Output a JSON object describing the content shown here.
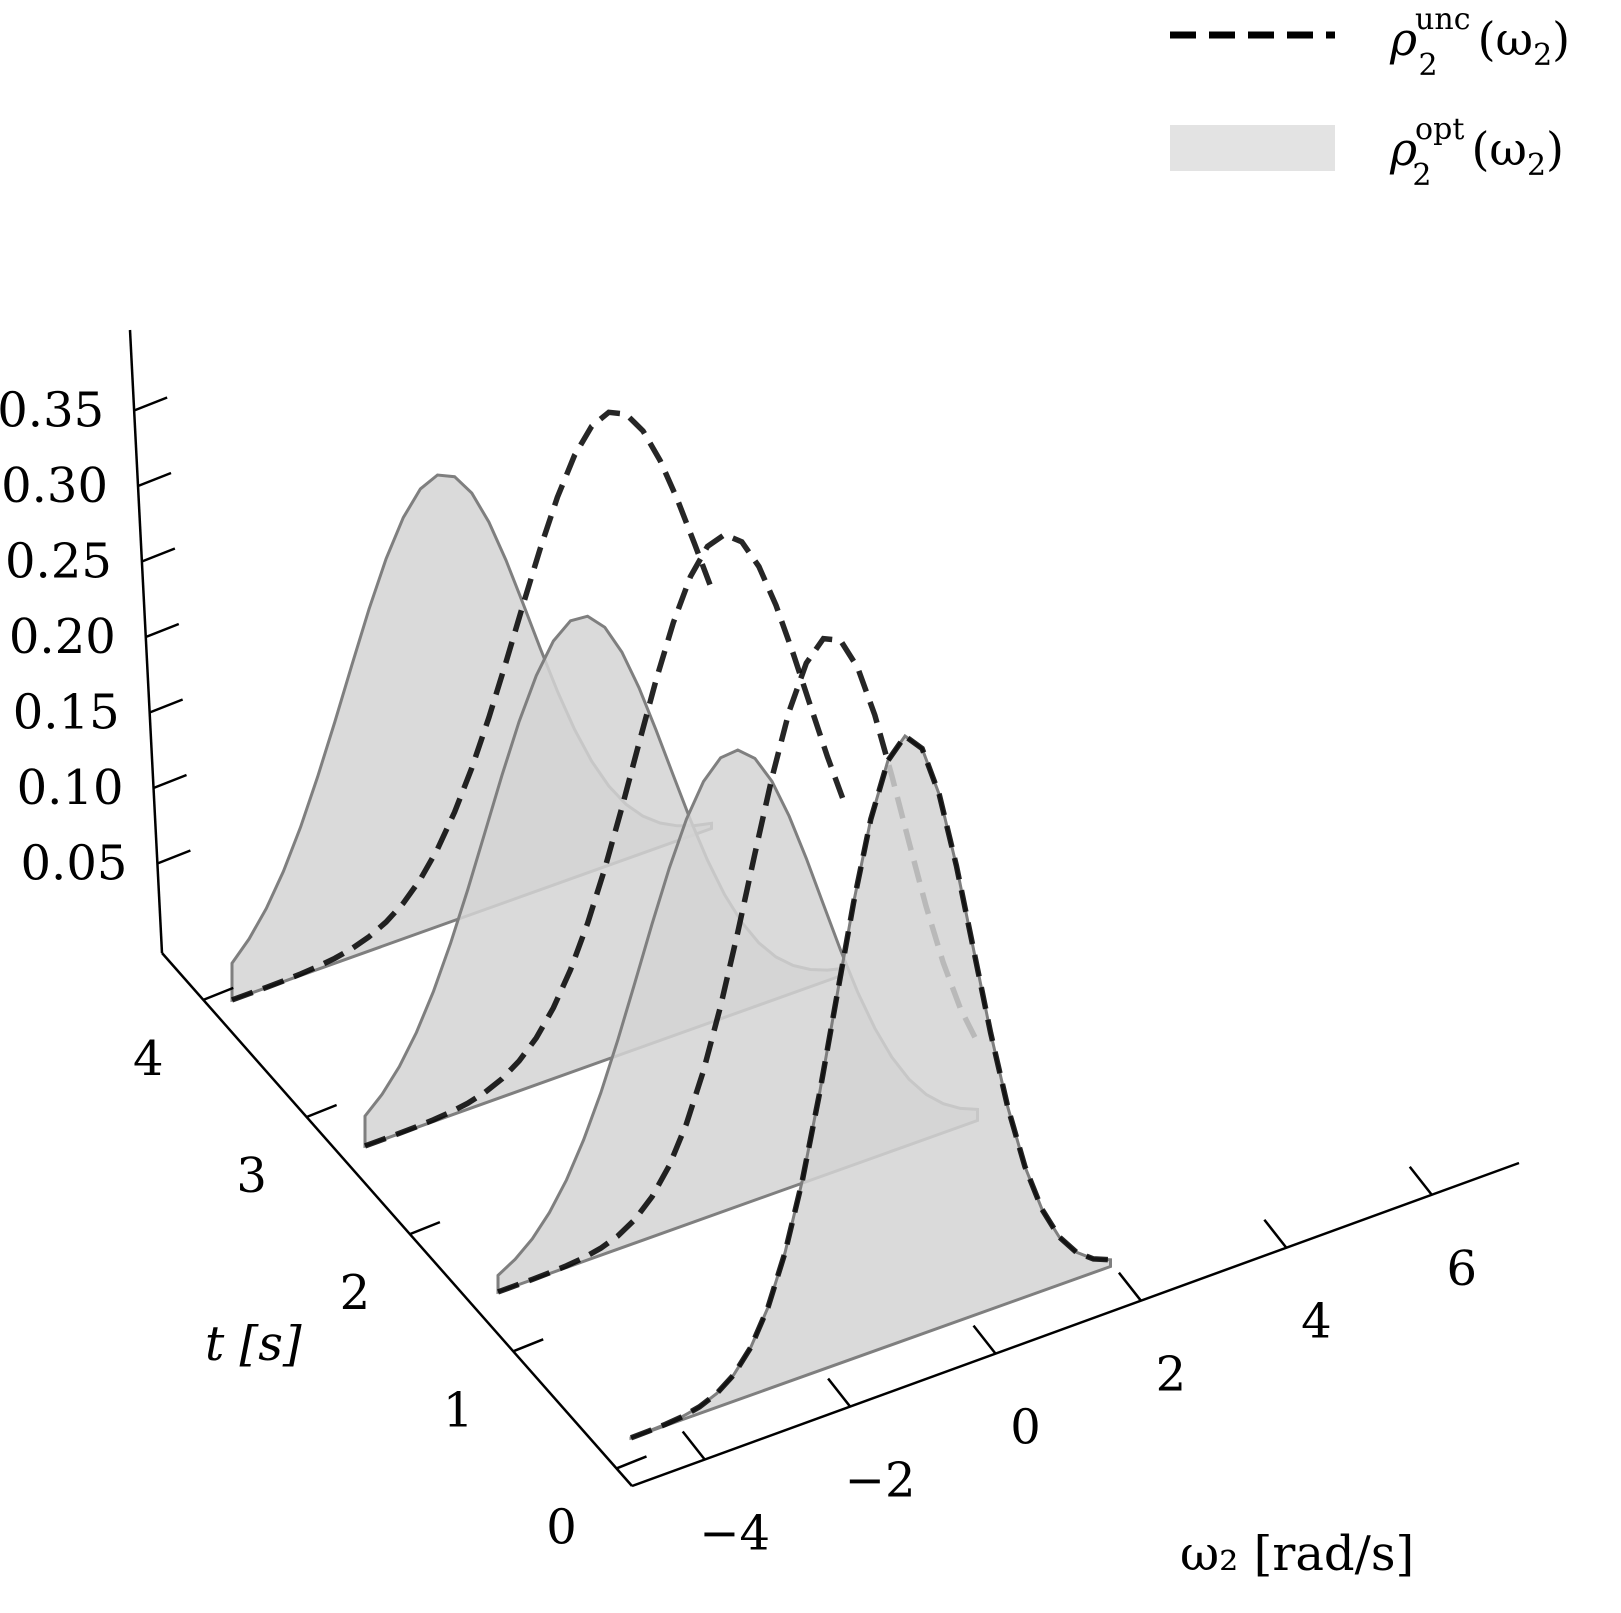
{
  "chart_data": {
    "type": "area",
    "projection": "3d-waterfall",
    "xlabel": "ω₂ [rad/s]",
    "tlabel": "t [s]",
    "zlabel": "",
    "x_ticks": [
      -4,
      -2,
      0,
      2,
      4,
      6
    ],
    "x_tick_labels": [
      "−4",
      "−2",
      "0",
      "2",
      "4",
      "6"
    ],
    "t_ticks": [
      0,
      1,
      2,
      3,
      4
    ],
    "t_tick_labels": [
      "0",
      "1",
      "2",
      "3",
      "4"
    ],
    "z_ticks": [
      0.05,
      0.1,
      0.15,
      0.2,
      0.25,
      0.3,
      0.35
    ],
    "z_tick_labels": [
      "0.05",
      "0.10",
      "0.15",
      "0.20",
      "0.25",
      "0.30",
      "0.35"
    ],
    "xlim": [
      -5,
      7
    ],
    "tlim": [
      0,
      4.5
    ],
    "zlim": [
      0,
      0.37
    ],
    "legend": {
      "position": "top-right",
      "entries": [
        {
          "symbol": "ρ",
          "sub": "2",
          "sup": "unc",
          "arg": "(ω",
          "argsub": "2",
          "close": ")",
          "style": "dashed"
        },
        {
          "symbol": "ρ",
          "sub": "2",
          "sup": "opt",
          "arg": "(ω",
          "argsub": "2",
          "close": ")",
          "style": "filled"
        }
      ]
    },
    "colors": {
      "unc": "#000000",
      "opt_fill": "#d3d3d3",
      "opt_edge": "#7f7f7f"
    },
    "series": [
      {
        "t": 0,
        "opt": {
          "mean": 0.0,
          "sd": 1.0,
          "peak": 0.4
        },
        "unc": {
          "mean": 0.0,
          "sd": 1.0,
          "peak": 0.4
        },
        "x_range": [
          -4,
          3
        ]
      },
      {
        "t": 1,
        "opt": {
          "mean": -0.6,
          "sd": 1.32,
          "peak": 0.303
        },
        "unc": {
          "mean": 0.8,
          "sd": 1.12,
          "peak": 0.356
        },
        "x_range": [
          -4,
          3
        ]
      },
      {
        "t": 2,
        "opt": {
          "mean": -0.9,
          "sd": 1.33,
          "peak": 0.3
        },
        "unc": {
          "mean": 1.2,
          "sd": 1.25,
          "peak": 0.32
        },
        "x_range": [
          -4,
          3
        ]
      },
      {
        "t": 3,
        "opt": {
          "mean": -1.0,
          "sd": 1.34,
          "peak": 0.299
        },
        "unc": {
          "mean": 1.5,
          "sd": 1.33,
          "peak": 0.3
        },
        "x_range": [
          -4,
          3
        ]
      }
    ]
  }
}
